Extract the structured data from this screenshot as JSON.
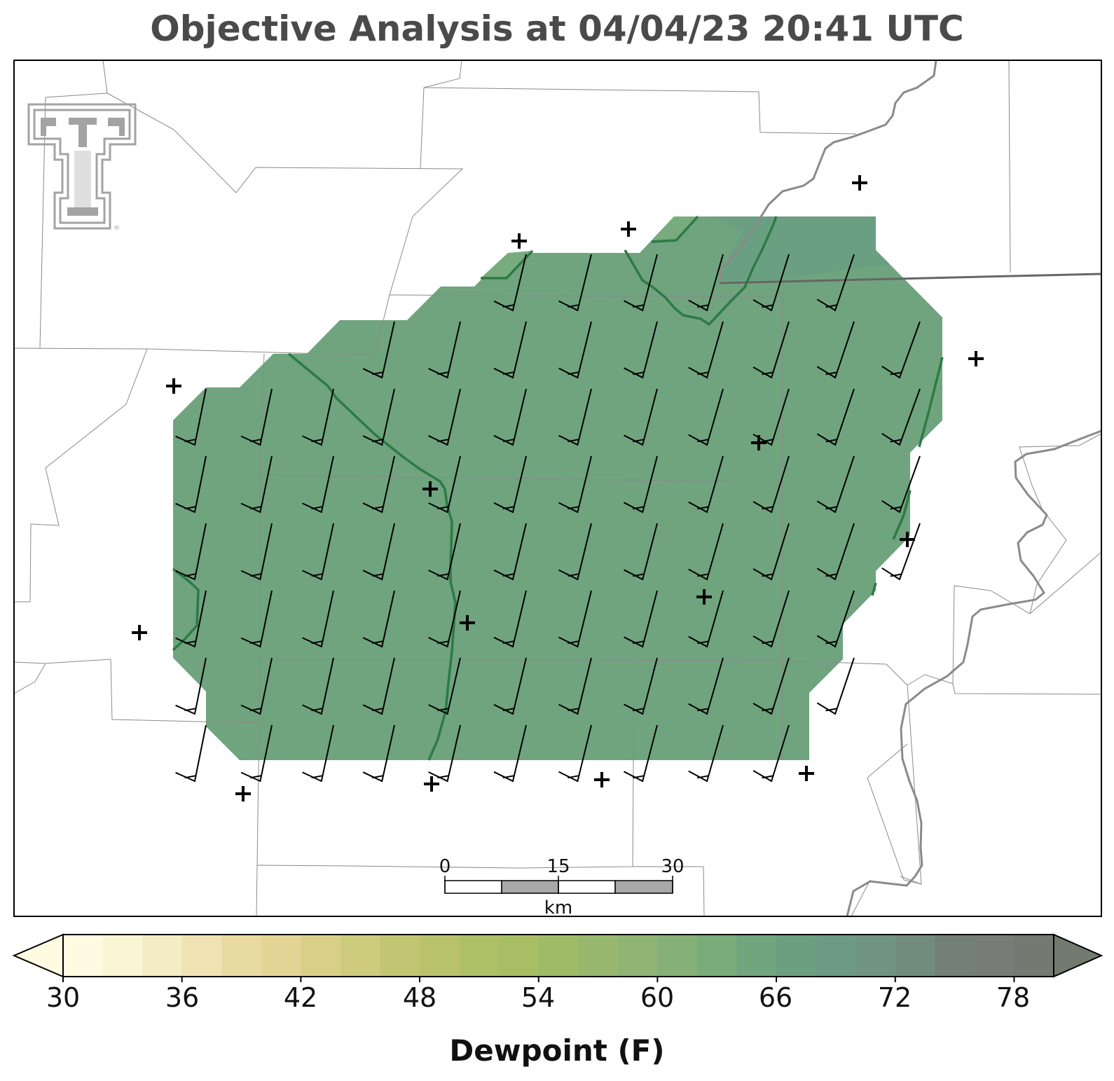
{
  "title": "Objective Analysis at 04/04/23 20:41 UTC",
  "colorbar": {
    "label": "Dewpoint (F)",
    "ticks": [
      "30",
      "36",
      "42",
      "48",
      "54",
      "60",
      "66",
      "72",
      "78"
    ],
    "min": 30,
    "max": 80,
    "step": 2,
    "colors": [
      "#fdfbe2",
      "#faf5d3",
      "#f4ecc4",
      "#efe3b4",
      "#e8dba1",
      "#e2d596",
      "#d8d088",
      "#cdcb7c",
      "#c2c672",
      "#b8c26a",
      "#afbf65",
      "#a7be65",
      "#9fbb68",
      "#97b86e",
      "#8fb474",
      "#85b178",
      "#7aab7b",
      "#70a57d",
      "#6b9f80",
      "#6d9a82",
      "#709481",
      "#718c7d",
      "#737f79",
      "#777d76",
      "#747a72"
    ],
    "under_color": "#fdfbe2",
    "over_color": "#737a70"
  },
  "analysis": {
    "field": "Dewpoint (F)",
    "fill_color": "#6fa47f",
    "contour_color": "#2e7a45",
    "value_range_F": [
      62,
      66
    ]
  },
  "scale_bar": {
    "ticks": [
      "0",
      "15",
      "30"
    ],
    "unit": "km"
  },
  "logo": {
    "name": "texas-tech-double-t-logo",
    "color": "#a3a3a3"
  },
  "colors": {
    "title": "#4a4a4a",
    "county_line": "#8a8a8a",
    "state_line": "#666666",
    "river": "#8a8a8a",
    "barb": "#000000"
  }
}
